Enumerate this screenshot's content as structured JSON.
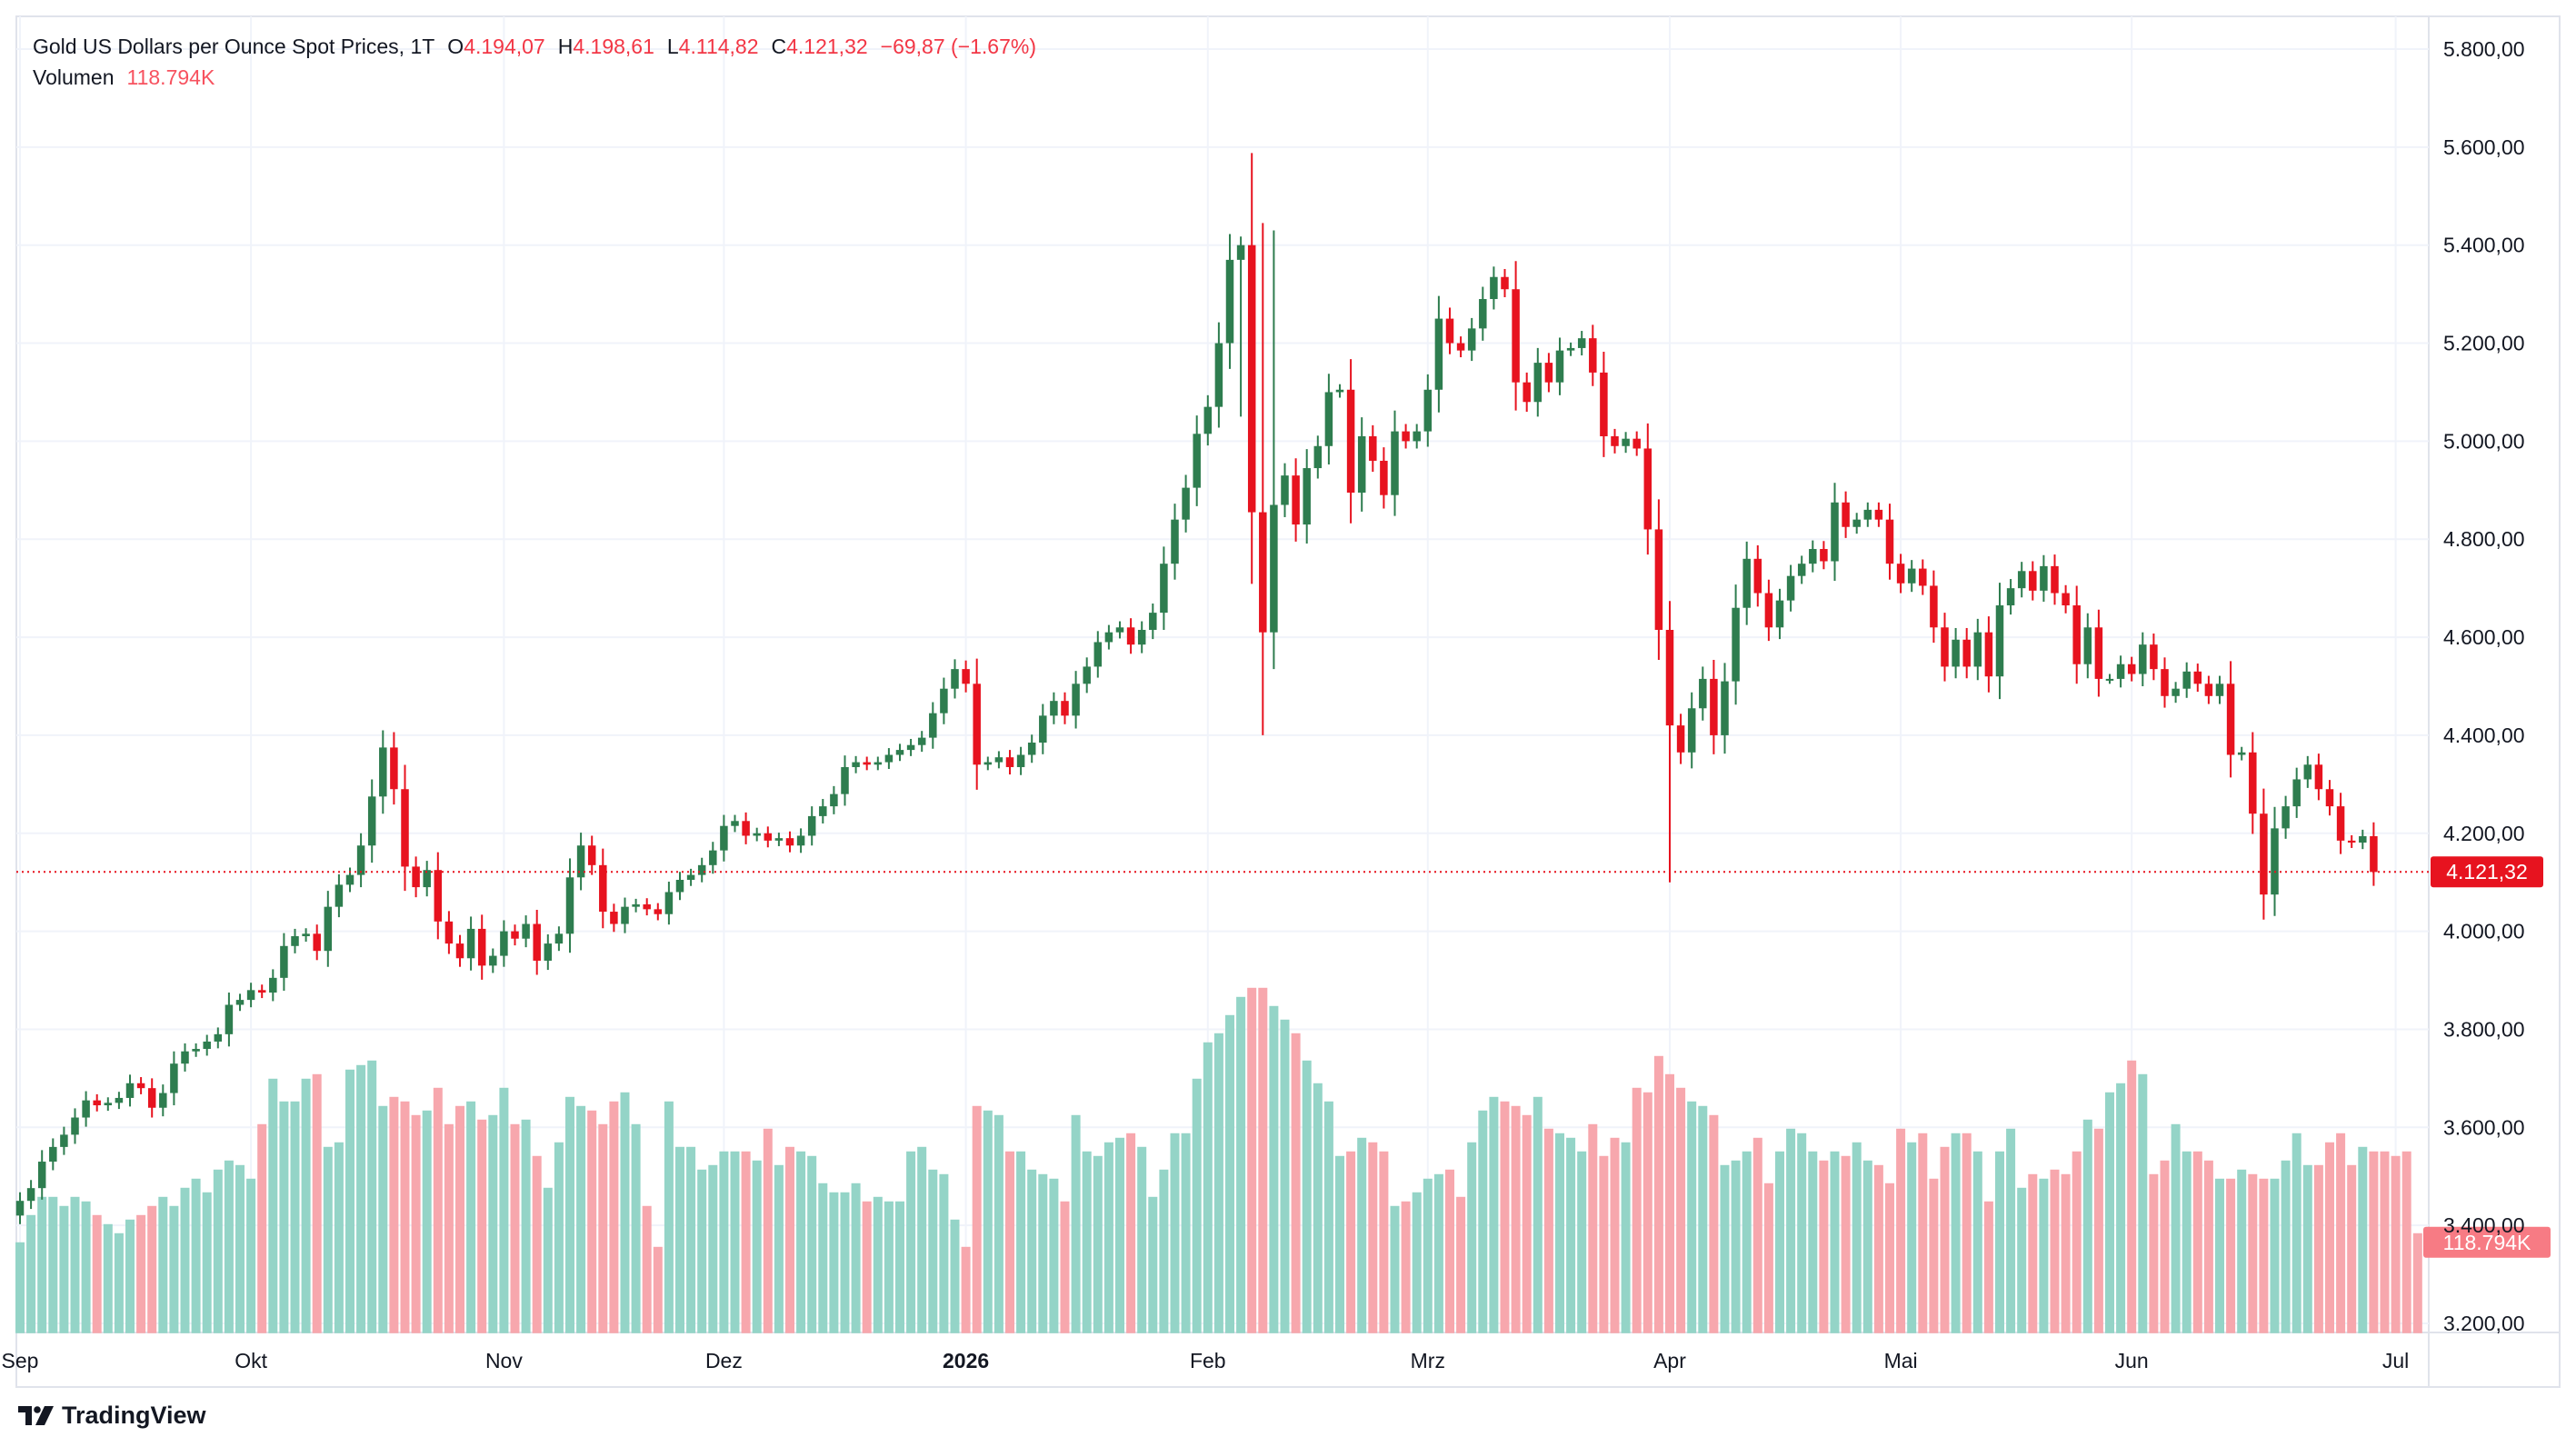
{
  "legend": {
    "title": "Gold US Dollars per Ounce Spot Prices, 1T",
    "o_label": "O",
    "o_value": "4.194,07",
    "h_label": "H",
    "h_value": "4.198,61",
    "l_label": "L",
    "l_value": "4.114,82",
    "c_label": "C",
    "c_value": "4.121,32",
    "change": "−69,87 (−1.67%)",
    "volume_label": "Volumen",
    "volume_value": "118.794K"
  },
  "brand": {
    "name": "TradingView",
    "icon": "tradingview-logo-icon"
  },
  "colors": {
    "up": "#2e7d4f",
    "down": "#e7131f",
    "vol_up": "#94d4c7",
    "vol_down": "#f7a7ad",
    "badge_price": "#e7131f",
    "badge_volume": "#f77b84"
  },
  "chart_data": {
    "type": "candlestick",
    "title": "Gold US Dollars per Ounce Spot Prices, 1T",
    "ylim": [
      3150,
      5850
    ],
    "y_ticks": [
      "5.800,00",
      "5.600,00",
      "5.400,00",
      "5.200,00",
      "5.000,00",
      "4.800,00",
      "4.600,00",
      "4.400,00",
      "4.200,00",
      "4.000,00",
      "3.800,00",
      "3.600,00",
      "3.400,00",
      "3.200,00"
    ],
    "y_tick_values": [
      5800,
      5600,
      5400,
      5200,
      5000,
      4800,
      4600,
      4400,
      4200,
      4000,
      3800,
      3600,
      3400,
      3200
    ],
    "x_ticks": [
      {
        "label": "Sep",
        "index": 0,
        "bold": false
      },
      {
        "label": "Okt",
        "index": 21,
        "bold": false
      },
      {
        "label": "Nov",
        "index": 44,
        "bold": false
      },
      {
        "label": "Dez",
        "index": 64,
        "bold": false
      },
      {
        "label": "2026",
        "index": 86,
        "bold": true
      },
      {
        "label": "Feb",
        "index": 108,
        "bold": false
      },
      {
        "label": "Mrz",
        "index": 128,
        "bold": false
      },
      {
        "label": "Apr",
        "index": 150,
        "bold": false
      },
      {
        "label": "Mai",
        "index": 171,
        "bold": false
      },
      {
        "label": "Jun",
        "index": 192,
        "bold": false
      },
      {
        "label": "Jul",
        "index": 216,
        "bold": false
      }
    ],
    "last_price": 4121.32,
    "last_price_label": "4.121,32",
    "volume_last_label": "118.794K",
    "volume_baseline": 3180,
    "closes": [
      3450,
      3476,
      3530,
      3560,
      3585,
      3620,
      3655,
      3645,
      3650,
      3660,
      3690,
      3680,
      3640,
      3670,
      3730,
      3755,
      3760,
      3775,
      3790,
      3850,
      3860,
      3880,
      3875,
      3905,
      3970,
      3990,
      3995,
      3960,
      4050,
      4095,
      4115,
      4175,
      4275,
      4375,
      4290,
      4132,
      4090,
      4125,
      4020,
      3975,
      3945,
      4005,
      3930,
      3950,
      4000,
      3985,
      4015,
      3940,
      3975,
      3995,
      4110,
      4175,
      4135,
      4040,
      4015,
      4050,
      4055,
      4045,
      4035,
      4080,
      4105,
      4115,
      4135,
      4165,
      4215,
      4225,
      4195,
      4200,
      4185,
      4190,
      4175,
      4195,
      4235,
      4255,
      4280,
      4335,
      4345,
      4340,
      4345,
      4360,
      4370,
      4380,
      4395,
      4445,
      4495,
      4535,
      4505,
      4340,
      4345,
      4355,
      4335,
      4360,
      4385,
      4440,
      4470,
      4440,
      4505,
      4540,
      4590,
      4610,
      4620,
      4585,
      4615,
      4650,
      4750,
      4840,
      4905,
      5015,
      5070,
      5200,
      5370,
      5400,
      4855,
      4610,
      4870,
      4930,
      4830,
      4945,
      4990,
      5100,
      5105,
      4895,
      5010,
      4960,
      4890,
      5020,
      5000,
      5020,
      5105,
      5250,
      5200,
      5185,
      5230,
      5290,
      5335,
      5310,
      5120,
      5080,
      5160,
      5120,
      5185,
      5190,
      5210,
      5140,
      5010,
      4990,
      5005,
      4985,
      4820,
      4615,
      4420,
      4365,
      4455,
      4515,
      4400,
      4510,
      4660,
      4760,
      4690,
      4620,
      4675,
      4725,
      4750,
      4780,
      4755,
      4875,
      4825,
      4840,
      4860,
      4840,
      4750,
      4710,
      4740,
      4705,
      4620,
      4540,
      4595,
      4540,
      4610,
      4520,
      4665,
      4700,
      4735,
      4695,
      4745,
      4690,
      4665,
      4545,
      4620,
      4515,
      4515,
      4545,
      4525,
      4585,
      4535,
      4480,
      4495,
      4530,
      4505,
      4480,
      4505,
      4360,
      4365,
      4240,
      4075,
      4210,
      4255,
      4310,
      4340,
      4290,
      4255,
      4185,
      4181,
      4194,
      4121
    ],
    "volumes": [
      100,
      130,
      150,
      150,
      140,
      150,
      145,
      130,
      120,
      110,
      125,
      130,
      140,
      150,
      140,
      160,
      170,
      155,
      180,
      190,
      185,
      170,
      230,
      280,
      255,
      255,
      280,
      285,
      205,
      210,
      290,
      295,
      300,
      250,
      260,
      255,
      240,
      245,
      270,
      230,
      250,
      255,
      235,
      240,
      270,
      230,
      235,
      195,
      160,
      210,
      260,
      250,
      245,
      230,
      255,
      265,
      230,
      140,
      95,
      255,
      205,
      205,
      180,
      185,
      200,
      200,
      200,
      190,
      225,
      185,
      205,
      200,
      195,
      165,
      155,
      155,
      165,
      145,
      150,
      145,
      145,
      200,
      205,
      180,
      175,
      125,
      95,
      250,
      245,
      240,
      200,
      200,
      180,
      175,
      170,
      145,
      240,
      200,
      195,
      210,
      215,
      220,
      205,
      150,
      180,
      220,
      220,
      280,
      320,
      330,
      350,
      370,
      380,
      380,
      360,
      345,
      330,
      300,
      275,
      255,
      195,
      200,
      215,
      210,
      200,
      140,
      145,
      155,
      170,
      175,
      180,
      150,
      210,
      245,
      260,
      255,
      250,
      240,
      260,
      225,
      220,
      215,
      200,
      230,
      195,
      215,
      210,
      270,
      265,
      305,
      285,
      270,
      255,
      250,
      240,
      185,
      190,
      200,
      215,
      165,
      200,
      225,
      220,
      200,
      190,
      200,
      195,
      210,
      190,
      185,
      165,
      225,
      210,
      220,
      170,
      205,
      220,
      220,
      200,
      145,
      200,
      225,
      160,
      175,
      170,
      180,
      175,
      200,
      235,
      225,
      265,
      275,
      300,
      285,
      175,
      190,
      230,
      200,
      200,
      190,
      170,
      170,
      180,
      175,
      170,
      170,
      190,
      220,
      185,
      185,
      210,
      220,
      185,
      205,
      200,
      200,
      195,
      200,
      110
    ]
  }
}
